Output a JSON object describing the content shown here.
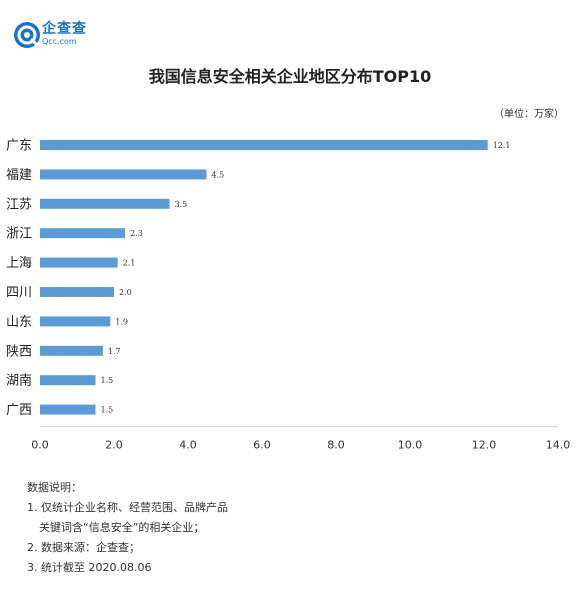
{
  "brand": {
    "name_cn": "企查查",
    "name_en": "Qcc.com"
  },
  "chart_data": {
    "type": "bar",
    "orientation": "horizontal",
    "title": "我国信息安全相关企业地区分布TOP10",
    "unit": "（单位：万家）",
    "categories": [
      "广东",
      "福建",
      "江苏",
      "浙江",
      "上海",
      "四川",
      "山东",
      "陕西",
      "湖南",
      "广西"
    ],
    "values": [
      12.1,
      4.5,
      3.5,
      2.3,
      2.1,
      2.0,
      1.9,
      1.7,
      1.5,
      1.5
    ],
    "value_labels": [
      "12.1",
      "4.5",
      "3.5",
      "2.3",
      "2.1",
      "2.0",
      "1.9",
      "1.7",
      "1.5",
      "1.5"
    ],
    "xlim": [
      0,
      14
    ],
    "xticks": [
      "0.0",
      "2.0",
      "4.0",
      "6.0",
      "8.0",
      "10.0",
      "12.0",
      "14.0"
    ],
    "bar_color": "#5b9bd5",
    "grid": false
  },
  "notes": {
    "heading": "数据说明：",
    "item1_line1": "1. 仅统计企业名称、经营范围、品牌产品",
    "item1_line2": "关键词含“信息安全”的相关企业；",
    "item2": "2. 数据来源：企查查；",
    "item3": "3. 统计截至 2020.08.06"
  }
}
